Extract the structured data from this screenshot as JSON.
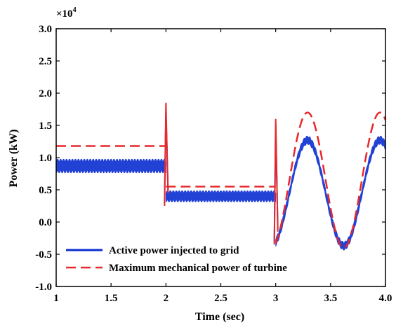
{
  "chart_data": {
    "type": "line",
    "title": "",
    "xlabel": "Time (sec)",
    "ylabel": "Power (kW)",
    "y_multiplier_label": "×10",
    "y_multiplier_exponent": "4",
    "xlim": [
      1,
      4
    ],
    "ylim": [
      -1.0,
      3.0
    ],
    "x_ticks": [
      "1",
      "1.5",
      "2",
      "2.5",
      "3",
      "3.5",
      "4.0"
    ],
    "x_tick_values": [
      1,
      1.5,
      2,
      2.5,
      3,
      3.5,
      4
    ],
    "y_ticks": [
      "-1.0",
      "-0.5",
      "0.0",
      "0.5",
      "1.0",
      "1.5",
      "2.0",
      "2.5",
      "3.0"
    ],
    "y_tick_values": [
      -1.0,
      -0.5,
      0.0,
      0.5,
      1.0,
      1.5,
      2.0,
      2.5,
      3.0
    ],
    "grid": false,
    "legend_position": "bottom-left",
    "series": [
      {
        "name": "Active power injected to grid",
        "color": "#0a2cd0",
        "style": "solid",
        "segments": [
          {
            "x_start": 1.0,
            "x_end": 2.0,
            "value": 0.87,
            "ripple": 0.11
          },
          {
            "x_start": 2.0,
            "x_end": 3.0,
            "value": 0.4,
            "ripple": 0.09
          },
          {
            "x_start": 3.0,
            "x_end": 4.0,
            "sine_center": 0.45,
            "sine_amplitude": 0.82,
            "sine_period": 0.66,
            "sine_trough_x": 3.62,
            "ripple": 0.07
          }
        ],
        "transients": [
          {
            "x": 2.0,
            "min": 0.3,
            "max": 1.7
          },
          {
            "x": 3.0,
            "min": -0.3,
            "max": 1.5
          }
        ]
      },
      {
        "name": "Maximum mechanical power of turbine",
        "color": "#e8282a",
        "style": "dashed",
        "segments": [
          {
            "x_start": 1.0,
            "x_end": 2.0,
            "value": 1.18
          },
          {
            "x_start": 2.0,
            "x_end": 3.0,
            "value": 0.55
          },
          {
            "x_start": 3.0,
            "x_end": 4.0,
            "sine_center": 0.65,
            "sine_amplitude": 1.05,
            "sine_period": 0.66,
            "sine_trough_x": 3.62
          }
        ],
        "transients": [
          {
            "x": 2.0,
            "min": 0.25,
            "max": 1.85
          },
          {
            "x": 3.0,
            "min": -0.35,
            "max": 1.6
          }
        ]
      }
    ]
  }
}
